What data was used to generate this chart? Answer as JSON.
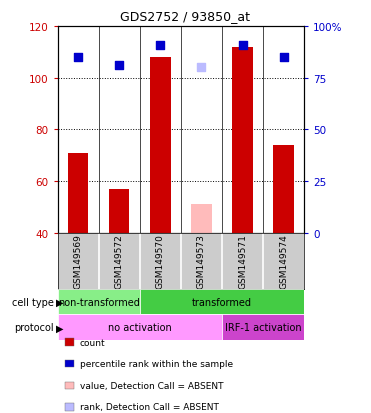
{
  "title": "GDS2752 / 93850_at",
  "samples": [
    "GSM149569",
    "GSM149572",
    "GSM149570",
    "GSM149573",
    "GSM149571",
    "GSM149574"
  ],
  "bar_values": [
    71,
    57,
    108,
    null,
    112,
    74
  ],
  "absent_bar_values": [
    null,
    null,
    null,
    51,
    null,
    null
  ],
  "percentile_values": [
    85,
    81,
    91,
    null,
    91,
    85
  ],
  "absent_rank_values": [
    null,
    null,
    null,
    80,
    null,
    null
  ],
  "ylim_left": [
    40,
    120
  ],
  "ylim_right": [
    0,
    100
  ],
  "yticks_left": [
    40,
    60,
    80,
    100,
    120
  ],
  "yticks_right": [
    0,
    25,
    50,
    75,
    100
  ],
  "ytick_labels_left": [
    "40",
    "60",
    "80",
    "100",
    "120"
  ],
  "ytick_labels_right": [
    "0",
    "25",
    "50",
    "75",
    "100%"
  ],
  "cell_type_groups": [
    {
      "label": "non-transformed",
      "start": 0,
      "end": 2,
      "color": "#88ee88"
    },
    {
      "label": "transformed",
      "start": 2,
      "end": 6,
      "color": "#44cc44"
    }
  ],
  "protocol_groups": [
    {
      "label": "no activation",
      "start": 0,
      "end": 4,
      "color": "#ff99ff"
    },
    {
      "label": "IRF-1 activation",
      "start": 4,
      "end": 6,
      "color": "#cc44cc"
    }
  ],
  "legend_items": [
    {
      "color": "#cc0000",
      "label": "count"
    },
    {
      "color": "#0000cc",
      "label": "percentile rank within the sample"
    },
    {
      "color": "#ffbbbb",
      "label": "value, Detection Call = ABSENT"
    },
    {
      "color": "#bbbbff",
      "label": "rank, Detection Call = ABSENT"
    }
  ],
  "bar_color": "#cc0000",
  "absent_bar_color": "#ffbbbb",
  "dot_color": "#0000cc",
  "absent_dot_color": "#bbbbff",
  "bar_width": 0.5,
  "dot_size": 40,
  "background_color": "#ffffff",
  "left_axis_color": "#cc0000",
  "right_axis_color": "#0000cc",
  "label_bg_color": "#cccccc"
}
